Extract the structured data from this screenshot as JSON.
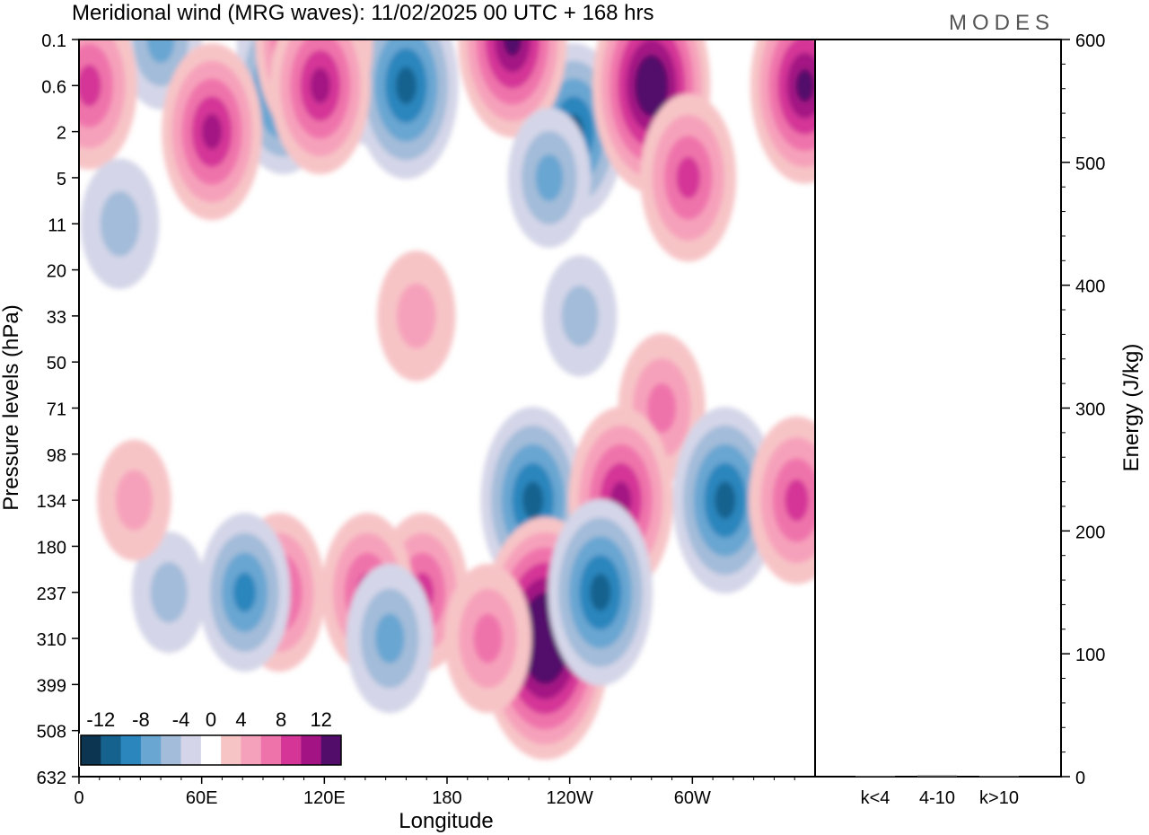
{
  "chart_data": [
    {
      "type": "heatmap",
      "title": "Meridional wind (MRG waves):  11/02/2025  00 UTC  + 168 hrs",
      "xlabel": "Longitude",
      "ylabel": "Pressure levels (hPa)",
      "x_ticks": [
        "0",
        "60E",
        "120E",
        "180",
        "120W",
        "60W"
      ],
      "x_tick_values": [
        0,
        60,
        120,
        180,
        240,
        300
      ],
      "xlim": [
        0,
        360
      ],
      "y_ticks": [
        "0.1",
        "0.6",
        "2",
        "5",
        "11",
        "20",
        "33",
        "50",
        "71",
        "98",
        "134",
        "180",
        "237",
        "310",
        "399",
        "508",
        "632"
      ],
      "y_axis_scale": "categorical pressure levels, top = 0.1 hPa, bottom = 632 hPa",
      "colorbar": {
        "labels": [
          "-12",
          "-8",
          "-4",
          "0",
          "4",
          "8",
          "12"
        ],
        "levels": [
          -14,
          -12,
          -10,
          -8,
          -6,
          -4,
          -2,
          2,
          4,
          6,
          8,
          10,
          12,
          14
        ],
        "colors": [
          "#0b3550",
          "#15628f",
          "#2b86bd",
          "#69a6d2",
          "#a3bcd9",
          "#d4d5e8",
          "#ffffff",
          "#f7c4c6",
          "#f6a1bb",
          "#ef73ab",
          "#d43597",
          "#a31383",
          "#520c6a"
        ]
      },
      "features": [
        {
          "lon": 107,
          "level": "0.1",
          "v": -14
        },
        {
          "lon": 145,
          "level": "0.1",
          "v": -13
        },
        {
          "lon": 160,
          "level": "0.6",
          "v": -10
        },
        {
          "lon": 100,
          "level": "0.6",
          "v": -9
        },
        {
          "lon": 242,
          "level": "2",
          "v": -9
        },
        {
          "lon": 40,
          "level": "0.1",
          "v": -5
        },
        {
          "lon": 115,
          "level": "0.1",
          "v": 13
        },
        {
          "lon": 212,
          "level": "0.1",
          "v": 11
        },
        {
          "lon": 280,
          "level": "0.6",
          "v": 13
        },
        {
          "lon": 355,
          "level": "0.6",
          "v": 11
        },
        {
          "lon": 5,
          "level": "0.6",
          "v": 8
        },
        {
          "lon": 65,
          "level": "2",
          "v": 9
        },
        {
          "lon": 118,
          "level": "0.6",
          "v": 9
        },
        {
          "lon": 298,
          "level": "5",
          "v": 8
        },
        {
          "lon": 230,
          "level": "5",
          "v": -5
        },
        {
          "lon": 20,
          "level": "11",
          "v": -4
        },
        {
          "lon": 165,
          "level": "33",
          "v": 4
        },
        {
          "lon": 245,
          "level": "33",
          "v": -3
        },
        {
          "lon": 285,
          "level": "71",
          "v": 6
        },
        {
          "lon": 222,
          "level": "134",
          "v": -10
        },
        {
          "lon": 265,
          "level": "134",
          "v": 10
        },
        {
          "lon": 316,
          "level": "134",
          "v": -10
        },
        {
          "lon": 351,
          "level": "134",
          "v": 8
        },
        {
          "lon": 228,
          "level": "310",
          "v": 16
        },
        {
          "lon": 255,
          "level": "237",
          "v": -10
        },
        {
          "lon": 98,
          "level": "237",
          "v": 7
        },
        {
          "lon": 168,
          "level": "237",
          "v": 7
        },
        {
          "lon": 141,
          "level": "237",
          "v": 7
        },
        {
          "lon": 81,
          "level": "237",
          "v": -7
        },
        {
          "lon": 152,
          "level": "310",
          "v": -6
        },
        {
          "lon": 200,
          "level": "310",
          "v": 6
        },
        {
          "lon": 44,
          "level": "237",
          "v": -3
        },
        {
          "lon": 27,
          "level": "134",
          "v": 3
        }
      ]
    },
    {
      "type": "bar",
      "ylabel": "Energy (J/kg)",
      "ylim": [
        0,
        600
      ],
      "categories": [
        "k<4",
        "4-10",
        "k>10"
      ],
      "values": [
        0.5,
        1,
        0.5
      ],
      "y_ticks": [
        "0",
        "100",
        "200",
        "300",
        "400",
        "500",
        "600"
      ]
    }
  ],
  "watermark": "MODES"
}
